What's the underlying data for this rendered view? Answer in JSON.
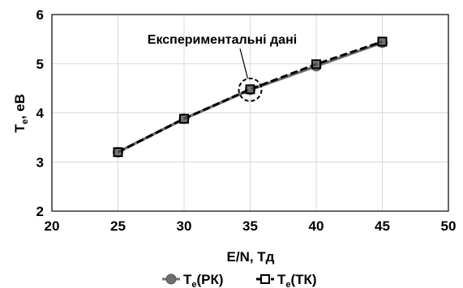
{
  "chart_data": {
    "type": "line",
    "x": [
      25,
      30,
      35,
      40,
      45
    ],
    "series": [
      {
        "name": "Te(РК)",
        "name_main": "T",
        "name_sub": "e",
        "name_suffix": "(РК)",
        "values": [
          3.2,
          3.88,
          4.47,
          4.95,
          5.43
        ],
        "color": "#707070",
        "marker": "circle",
        "line_style": "solid"
      },
      {
        "name": "Te(ТК)",
        "name_main": "T",
        "name_sub": "e",
        "name_suffix": "(ТК)",
        "values": [
          3.2,
          3.88,
          4.48,
          4.99,
          5.45
        ],
        "color": "#000000",
        "marker": "square",
        "line_style": "dashed"
      }
    ],
    "xlabel": "E/N, Тд",
    "ylabel": "Te, еВ",
    "ylabel_main": "T",
    "ylabel_sub": "e",
    "ylabel_suffix": ", еВ",
    "xlim": [
      20,
      50
    ],
    "ylim": [
      2,
      6
    ],
    "xticks": [
      20,
      25,
      30,
      35,
      40,
      45,
      50
    ],
    "yticks": [
      2,
      3,
      4,
      5,
      6
    ],
    "grid": true,
    "legend_position": "bottom",
    "annotation": {
      "text": "Експериментальні дані",
      "target_x": 35,
      "target_y": 4.47
    }
  }
}
